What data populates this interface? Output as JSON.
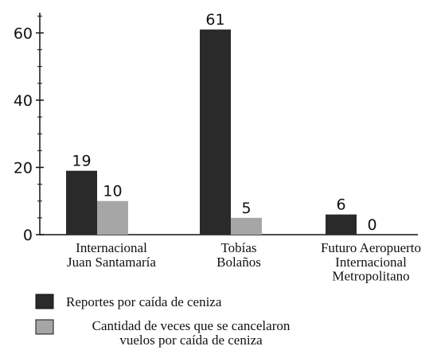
{
  "chart_data": {
    "type": "bar",
    "categories": [
      "Internacional\nJuan Santamaría",
      "Tobías\nBolaños",
      "Futuro Aeropuerto\nInternacional\nMetropolitano"
    ],
    "series": [
      {
        "name": "Reportes por caída de ceniza",
        "color": "#2a2a2a",
        "values": [
          19,
          61,
          6
        ]
      },
      {
        "name": "Cantidad de veces que se cancelaron\nvuelos por caída de ceniza",
        "color": "#a6a6a6",
        "values": [
          10,
          5,
          0
        ]
      }
    ],
    "ylim": [
      0,
      66
    ],
    "yticks": [
      0,
      20,
      40,
      60
    ],
    "yminor_ticks": [
      5,
      10,
      15,
      25,
      30,
      35,
      45,
      50,
      55,
      65
    ]
  }
}
